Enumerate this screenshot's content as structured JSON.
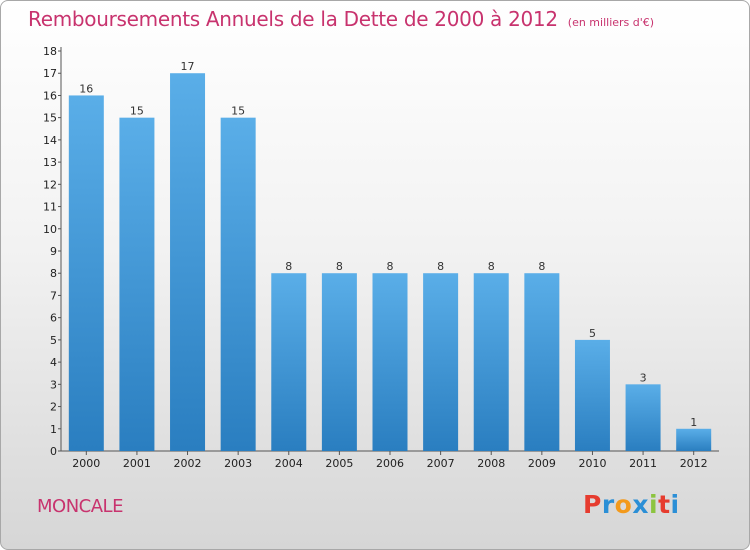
{
  "title": "Remboursements Annuels de la Dette de 2000 à 2012",
  "unit": "(en milliers d'€)",
  "commune": "MONCALE",
  "logo": {
    "letters": [
      "P",
      "r",
      "o",
      "x",
      "i",
      "t",
      "i"
    ],
    "colors": [
      "#e63c2f",
      "#2b8fd6",
      "#f39a1c",
      "#2b8fd6",
      "#8cc43f",
      "#e63c2f",
      "#2b8fd6"
    ]
  },
  "colors": {
    "title": "#c8336e",
    "bar_top": "#5aaee8",
    "bar_bottom": "#2a7ec0"
  },
  "chart_data": {
    "type": "bar",
    "categories": [
      "2000",
      "2001",
      "2002",
      "2003",
      "2004",
      "2005",
      "2006",
      "2007",
      "2008",
      "2009",
      "2010",
      "2011",
      "2012"
    ],
    "values": [
      16,
      15,
      17,
      15,
      8,
      8,
      8,
      8,
      8,
      8,
      5,
      3,
      1
    ],
    "ylim": [
      0,
      18
    ],
    "yticks": [
      "0",
      "1",
      "2",
      "3",
      "4",
      "5",
      "6",
      "7",
      "8",
      "9",
      "10",
      "11",
      "12",
      "13",
      "14",
      "15",
      "16",
      "17",
      "18"
    ],
    "data_labels": true,
    "grid": false,
    "legend": "none"
  }
}
